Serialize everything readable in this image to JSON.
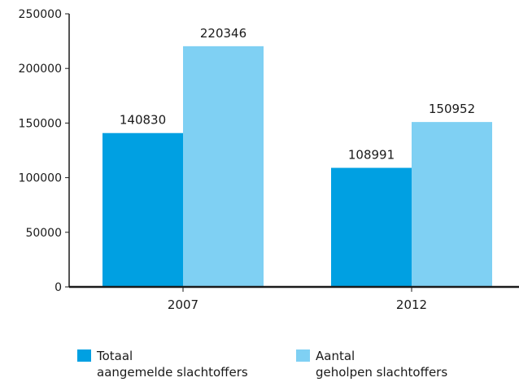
{
  "chart_data": {
    "type": "bar",
    "title": "",
    "xlabel": "",
    "ylabel": "",
    "categories": [
      "2007",
      "2012"
    ],
    "series": [
      {
        "name": "Totaal\naangemelde slachtoffers",
        "color": "#00a0e2",
        "values": [
          140830,
          108991
        ]
      },
      {
        "name": "Aantal\ngeholpen slachtoffers",
        "color": "#7fd0f3",
        "values": [
          220346,
          150952
        ]
      }
    ],
    "ylim": [
      0,
      250000
    ],
    "yticks": [
      "0",
      "50000",
      "100000",
      "150000",
      "200000",
      "250000"
    ],
    "value_labels": [
      [
        "140830",
        "108991"
      ],
      [
        "220346",
        "150952"
      ]
    ],
    "grid": false,
    "legend_position": "bottom"
  }
}
